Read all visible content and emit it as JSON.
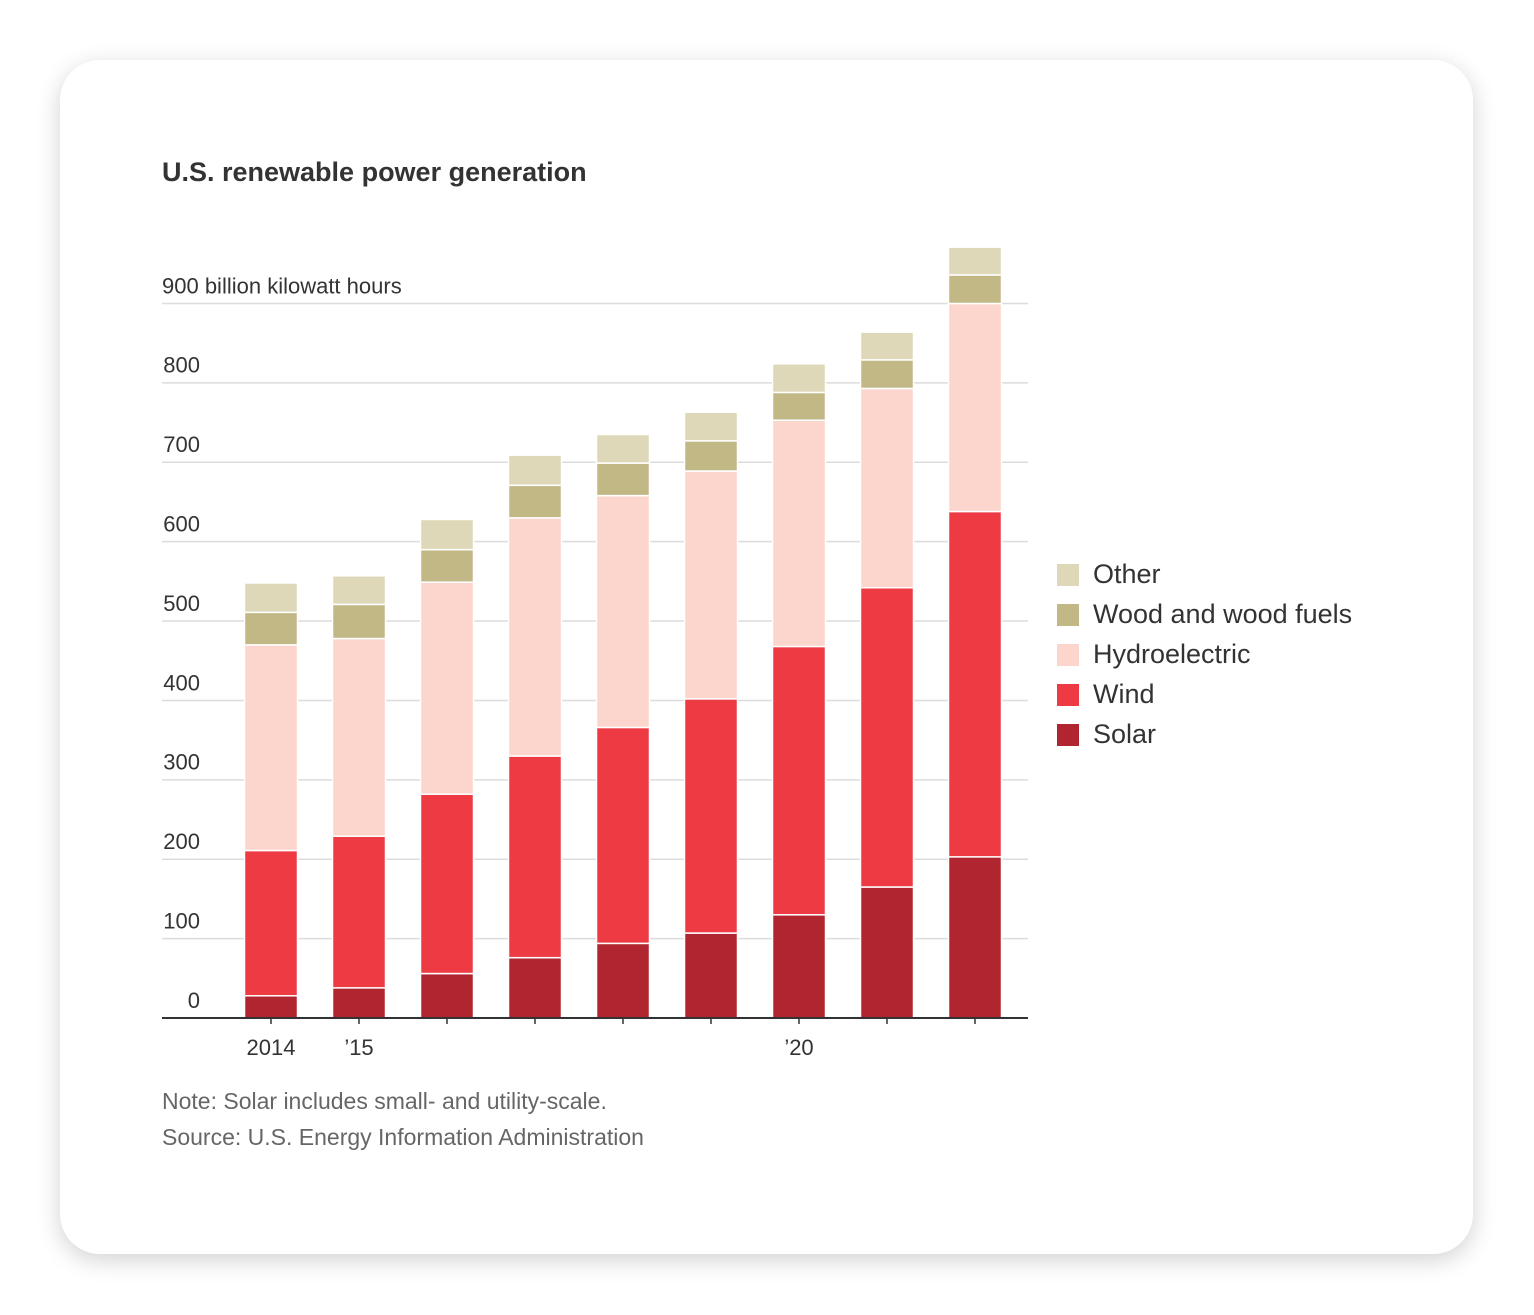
{
  "chart_data": {
    "type": "stacked_bar",
    "title": "U.S. renewable power generation",
    "categories": [
      "2014",
      "’15",
      null,
      null,
      null,
      null,
      "’20",
      null,
      null
    ],
    "series": [
      {
        "name": "Solar",
        "color": "#b0252f",
        "values": [
          28,
          38,
          56,
          76,
          94,
          107,
          130,
          165,
          203
        ]
      },
      {
        "name": "Wind",
        "color": "#ee3a43",
        "values": [
          183,
          191,
          226,
          254,
          272,
          295,
          338,
          377,
          435
        ]
      },
      {
        "name": "Hydroelectric",
        "color": "#fcd5cc",
        "values": [
          259,
          249,
          267,
          300,
          292,
          287,
          285,
          251,
          262
        ]
      },
      {
        "name": "Wood and wood fuels",
        "color": "#c2b886",
        "values": [
          41,
          43,
          41,
          41,
          41,
          38,
          35,
          36,
          36
        ]
      },
      {
        "name": "Other",
        "color": "#ded8b8",
        "values": [
          37,
          36,
          38,
          38,
          36,
          36,
          36,
          35,
          35
        ]
      }
    ],
    "ylim": [
      0,
      980
    ],
    "yticks": [
      0,
      100,
      200,
      300,
      400,
      500,
      600,
      700,
      800,
      {
        "value": 900,
        "label": "900 billion kilowatt hours"
      }
    ],
    "grid": true,
    "legend": "right",
    "note": "Note: Solar includes small- and utility-scale.",
    "source": "Source: U.S. Energy Information Administration"
  }
}
